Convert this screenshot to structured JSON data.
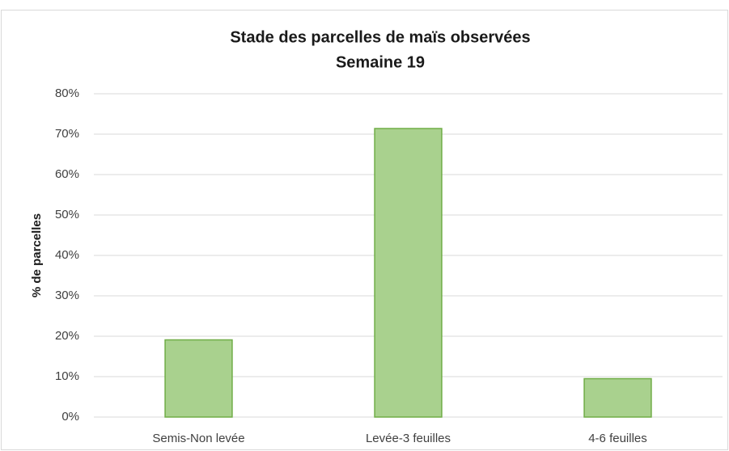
{
  "chart_data": {
    "type": "bar",
    "title": "Stade des parcelles de maïs observées",
    "subtitle": "Semaine 19",
    "y_label": "% de parcelles",
    "categories": [
      "Semis-Non levée",
      "Levée-3 feuilles",
      "4-6 feuilles"
    ],
    "values": [
      19.1,
      71.4,
      9.5
    ],
    "color": "#a9d18e",
    "edge_color": "#70ad47",
    "ylim": [
      0,
      80
    ],
    "yticks": [
      {
        "value": 0,
        "label": "0%"
      },
      {
        "value": 10,
        "label": "10%"
      },
      {
        "value": 20,
        "label": "20%"
      },
      {
        "value": 30,
        "label": "30%"
      },
      {
        "value": 40,
        "label": "40%"
      },
      {
        "value": 50,
        "label": "50%"
      },
      {
        "value": 60,
        "label": "60%"
      },
      {
        "value": 70,
        "label": "70%"
      },
      {
        "value": 80,
        "label": "80%"
      }
    ],
    "grid": true
  }
}
